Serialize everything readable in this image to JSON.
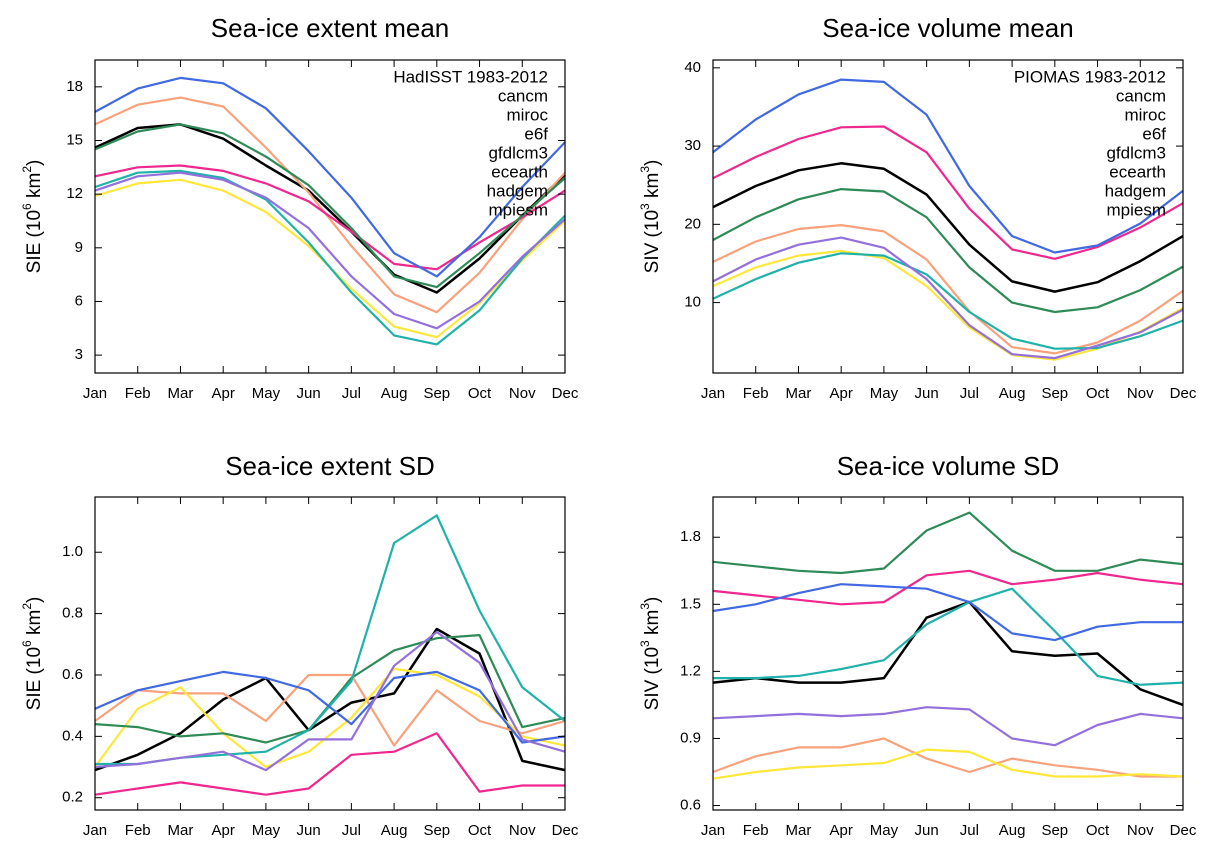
{
  "colors": {
    "black": "#000000",
    "cancm": "#f8a27d",
    "miroc": "#f0278e",
    "e6f": "#fde83a",
    "gfdlcm3": "#2e8b57",
    "ecearth": "#20b2aa",
    "hadgem": "#4169e1",
    "mpiesm": "#9370db"
  },
  "chart_data": [
    {
      "type": "line",
      "title": "Sea-ice extent mean",
      "ylabel_main": "SIE (10",
      "ylabel_exp": "6",
      "ylabel_unit": " km",
      "ylabel_unit_exp": "2",
      "ylabel_close": ")",
      "categories": [
        "Jan",
        "Feb",
        "Mar",
        "Apr",
        "May",
        "Jun",
        "Jul",
        "Aug",
        "Sep",
        "Oct",
        "Nov",
        "Dec"
      ],
      "ylim": [
        2.0,
        19.5
      ],
      "yticks": [
        3,
        6,
        9,
        12,
        15,
        18
      ],
      "ytick_labels": [
        "3",
        "6",
        "9",
        "12",
        "15",
        "18"
      ],
      "legend_loc": "top-right",
      "series": [
        {
          "name": "HadISST 1983-2012",
          "color": "#000000",
          "width": 2.5,
          "values": [
            14.6,
            15.7,
            15.9,
            15.1,
            13.6,
            12.2,
            9.9,
            7.5,
            6.5,
            8.4,
            10.8,
            13.1
          ]
        },
        {
          "name": "cancm",
          "color": "#f8a27d",
          "values": [
            15.9,
            17.0,
            17.4,
            16.9,
            14.6,
            12.1,
            9.1,
            6.4,
            5.4,
            7.6,
            10.6,
            13.2
          ]
        },
        {
          "name": "miroc",
          "color": "#f0278e",
          "values": [
            13.0,
            13.5,
            13.6,
            13.3,
            12.6,
            11.6,
            9.9,
            8.1,
            7.8,
            9.3,
            10.7,
            12.2
          ]
        },
        {
          "name": "e6f",
          "color": "#fde83a",
          "values": [
            11.9,
            12.6,
            12.8,
            12.2,
            11.0,
            9.1,
            6.7,
            4.6,
            4.0,
            5.9,
            8.3,
            10.5
          ]
        },
        {
          "name": "gfdlcm3",
          "color": "#2e8b57",
          "values": [
            14.5,
            15.5,
            15.9,
            15.4,
            14.1,
            12.5,
            10.1,
            7.4,
            6.8,
            8.7,
            10.8,
            12.9
          ]
        },
        {
          "name": "ecearth",
          "color": "#20b2aa",
          "values": [
            12.4,
            13.2,
            13.3,
            12.9,
            11.7,
            9.3,
            6.5,
            4.1,
            3.6,
            5.5,
            8.4,
            10.8
          ]
        },
        {
          "name": "hadgem",
          "color": "#4169e1",
          "values": [
            16.6,
            17.9,
            18.5,
            18.2,
            16.8,
            14.4,
            11.8,
            8.7,
            7.4,
            9.6,
            12.4,
            14.9
          ]
        },
        {
          "name": "mpiesm",
          "color": "#9370db",
          "values": [
            12.2,
            13.0,
            13.2,
            12.8,
            11.8,
            10.1,
            7.4,
            5.3,
            4.5,
            6.0,
            8.5,
            10.6
          ]
        }
      ]
    },
    {
      "type": "line",
      "title": "Sea-ice volume mean",
      "ylabel_main": "SIV (10",
      "ylabel_exp": "3",
      "ylabel_unit": " km",
      "ylabel_unit_exp": "3",
      "ylabel_close": ")",
      "categories": [
        "Jan",
        "Feb",
        "Mar",
        "Apr",
        "May",
        "Jun",
        "Jul",
        "Aug",
        "Sep",
        "Oct",
        "Nov",
        "Dec"
      ],
      "ylim": [
        1.0,
        41.0
      ],
      "yticks": [
        10,
        20,
        30,
        40
      ],
      "ytick_labels": [
        "10",
        "20",
        "30",
        "40"
      ],
      "legend_loc": "top-right",
      "series": [
        {
          "name": "PIOMAS 1983-2012",
          "color": "#000000",
          "width": 2.5,
          "values": [
            22.2,
            24.9,
            26.9,
            27.8,
            27.1,
            23.8,
            17.4,
            12.7,
            11.4,
            12.6,
            15.3,
            18.5
          ]
        },
        {
          "name": "cancm",
          "color": "#f8a27d",
          "values": [
            15.2,
            17.8,
            19.4,
            19.9,
            19.1,
            15.5,
            8.9,
            4.3,
            3.5,
            4.9,
            7.7,
            11.5
          ]
        },
        {
          "name": "miroc",
          "color": "#f0278e",
          "values": [
            25.9,
            28.6,
            30.9,
            32.4,
            32.5,
            29.2,
            22.0,
            16.8,
            15.6,
            17.1,
            19.6,
            22.7
          ]
        },
        {
          "name": "e6f",
          "color": "#fde83a",
          "values": [
            12.1,
            14.5,
            16.0,
            16.6,
            15.7,
            12.1,
            6.8,
            3.3,
            2.7,
            4.1,
            6.3,
            9.3
          ]
        },
        {
          "name": "gfdlcm3",
          "color": "#2e8b57",
          "values": [
            18.0,
            20.9,
            23.2,
            24.5,
            24.2,
            20.9,
            14.5,
            10.0,
            8.8,
            9.4,
            11.6,
            14.6
          ]
        },
        {
          "name": "ecearth",
          "color": "#20b2aa",
          "values": [
            10.5,
            13.0,
            15.1,
            16.3,
            16.0,
            13.6,
            8.8,
            5.4,
            4.1,
            4.2,
            5.7,
            7.7
          ]
        },
        {
          "name": "hadgem",
          "color": "#4169e1",
          "values": [
            29.2,
            33.4,
            36.6,
            38.5,
            38.2,
            34.0,
            24.9,
            18.5,
            16.4,
            17.3,
            20.1,
            24.3
          ]
        },
        {
          "name": "mpiesm",
          "color": "#9370db",
          "values": [
            12.7,
            15.5,
            17.4,
            18.3,
            17.0,
            13.0,
            7.1,
            3.4,
            2.9,
            4.5,
            6.2,
            9.1
          ]
        }
      ]
    },
    {
      "type": "line",
      "title": "Sea-ice extent SD",
      "ylabel_main": "SIE (10",
      "ylabel_exp": "6",
      "ylabel_unit": " km",
      "ylabel_unit_exp": "2",
      "ylabel_close": ")",
      "categories": [
        "Jan",
        "Feb",
        "Mar",
        "Apr",
        "May",
        "Jun",
        "Jul",
        "Aug",
        "Sep",
        "Oct",
        "Nov",
        "Dec"
      ],
      "ylim": [
        0.16,
        1.18
      ],
      "yticks": [
        0.2,
        0.4,
        0.6,
        0.8,
        1.0
      ],
      "ytick_labels": [
        "0.2",
        "0.4",
        "0.6",
        "0.8",
        "1.0"
      ],
      "legend_loc": "none",
      "series": [
        {
          "name": "",
          "color": "#000000",
          "width": 2.5,
          "values": [
            0.29,
            0.34,
            0.41,
            0.52,
            0.59,
            0.42,
            0.51,
            0.54,
            0.75,
            0.67,
            0.32,
            0.29
          ]
        },
        {
          "name": "",
          "color": "#f8a27d",
          "values": [
            0.45,
            0.55,
            0.54,
            0.54,
            0.45,
            0.6,
            0.6,
            0.37,
            0.55,
            0.45,
            0.41,
            0.45
          ]
        },
        {
          "name": "",
          "color": "#f0278e",
          "values": [
            0.21,
            0.23,
            0.25,
            0.23,
            0.21,
            0.23,
            0.34,
            0.35,
            0.41,
            0.22,
            0.24,
            0.24
          ]
        },
        {
          "name": "",
          "color": "#fde83a",
          "values": [
            0.3,
            0.49,
            0.56,
            0.41,
            0.3,
            0.35,
            0.46,
            0.62,
            0.6,
            0.53,
            0.4,
            0.37
          ]
        },
        {
          "name": "",
          "color": "#2e8b57",
          "values": [
            0.44,
            0.43,
            0.4,
            0.41,
            0.38,
            0.42,
            0.59,
            0.68,
            0.72,
            0.73,
            0.43,
            0.46
          ]
        },
        {
          "name": "",
          "color": "#20b2aa",
          "values": [
            0.31,
            0.31,
            0.33,
            0.34,
            0.35,
            0.42,
            0.58,
            1.03,
            1.12,
            0.81,
            0.56,
            0.45
          ]
        },
        {
          "name": "",
          "color": "#4169e1",
          "values": [
            0.49,
            0.55,
            0.58,
            0.61,
            0.59,
            0.55,
            0.44,
            0.59,
            0.61,
            0.55,
            0.38,
            0.4
          ]
        },
        {
          "name": "",
          "color": "#9370db",
          "values": [
            0.3,
            0.31,
            0.33,
            0.35,
            0.29,
            0.39,
            0.39,
            0.63,
            0.74,
            0.64,
            0.39,
            0.35
          ]
        }
      ]
    },
    {
      "type": "line",
      "title": "Sea-ice volume SD",
      "ylabel_main": "SIV (10",
      "ylabel_exp": "3",
      "ylabel_unit": " km",
      "ylabel_unit_exp": "3",
      "ylabel_close": ")",
      "categories": [
        "Jan",
        "Feb",
        "Mar",
        "Apr",
        "May",
        "Jun",
        "Jul",
        "Aug",
        "Sep",
        "Oct",
        "Nov",
        "Dec"
      ],
      "ylim": [
        0.58,
        1.98
      ],
      "yticks": [
        0.6,
        0.9,
        1.2,
        1.5,
        1.8
      ],
      "ytick_labels": [
        "0.6",
        "0.9",
        "1.2",
        "1.5",
        "1.8"
      ],
      "legend_loc": "none",
      "series": [
        {
          "name": "",
          "color": "#000000",
          "width": 2.5,
          "values": [
            1.15,
            1.17,
            1.15,
            1.15,
            1.17,
            1.44,
            1.51,
            1.29,
            1.27,
            1.28,
            1.12,
            1.05
          ]
        },
        {
          "name": "",
          "color": "#f8a27d",
          "values": [
            0.75,
            0.82,
            0.86,
            0.86,
            0.9,
            0.81,
            0.75,
            0.81,
            0.78,
            0.76,
            0.73,
            0.73
          ]
        },
        {
          "name": "",
          "color": "#f0278e",
          "values": [
            1.56,
            1.54,
            1.52,
            1.5,
            1.51,
            1.63,
            1.65,
            1.59,
            1.61,
            1.64,
            1.61,
            1.59
          ]
        },
        {
          "name": "",
          "color": "#fde83a",
          "values": [
            0.72,
            0.75,
            0.77,
            0.78,
            0.79,
            0.85,
            0.84,
            0.76,
            0.73,
            0.73,
            0.74,
            0.73
          ]
        },
        {
          "name": "",
          "color": "#2e8b57",
          "values": [
            1.69,
            1.67,
            1.65,
            1.64,
            1.66,
            1.83,
            1.91,
            1.74,
            1.65,
            1.65,
            1.7,
            1.68
          ]
        },
        {
          "name": "",
          "color": "#20b2aa",
          "values": [
            1.17,
            1.17,
            1.18,
            1.21,
            1.25,
            1.41,
            1.51,
            1.57,
            1.38,
            1.18,
            1.14,
            1.15
          ]
        },
        {
          "name": "",
          "color": "#4169e1",
          "values": [
            1.47,
            1.5,
            1.55,
            1.59,
            1.58,
            1.57,
            1.51,
            1.37,
            1.34,
            1.4,
            1.42,
            1.42
          ]
        },
        {
          "name": "",
          "color": "#9370db",
          "values": [
            0.99,
            1.0,
            1.01,
            1.0,
            1.01,
            1.04,
            1.03,
            0.9,
            0.87,
            0.96,
            1.01,
            0.99
          ]
        }
      ]
    }
  ]
}
